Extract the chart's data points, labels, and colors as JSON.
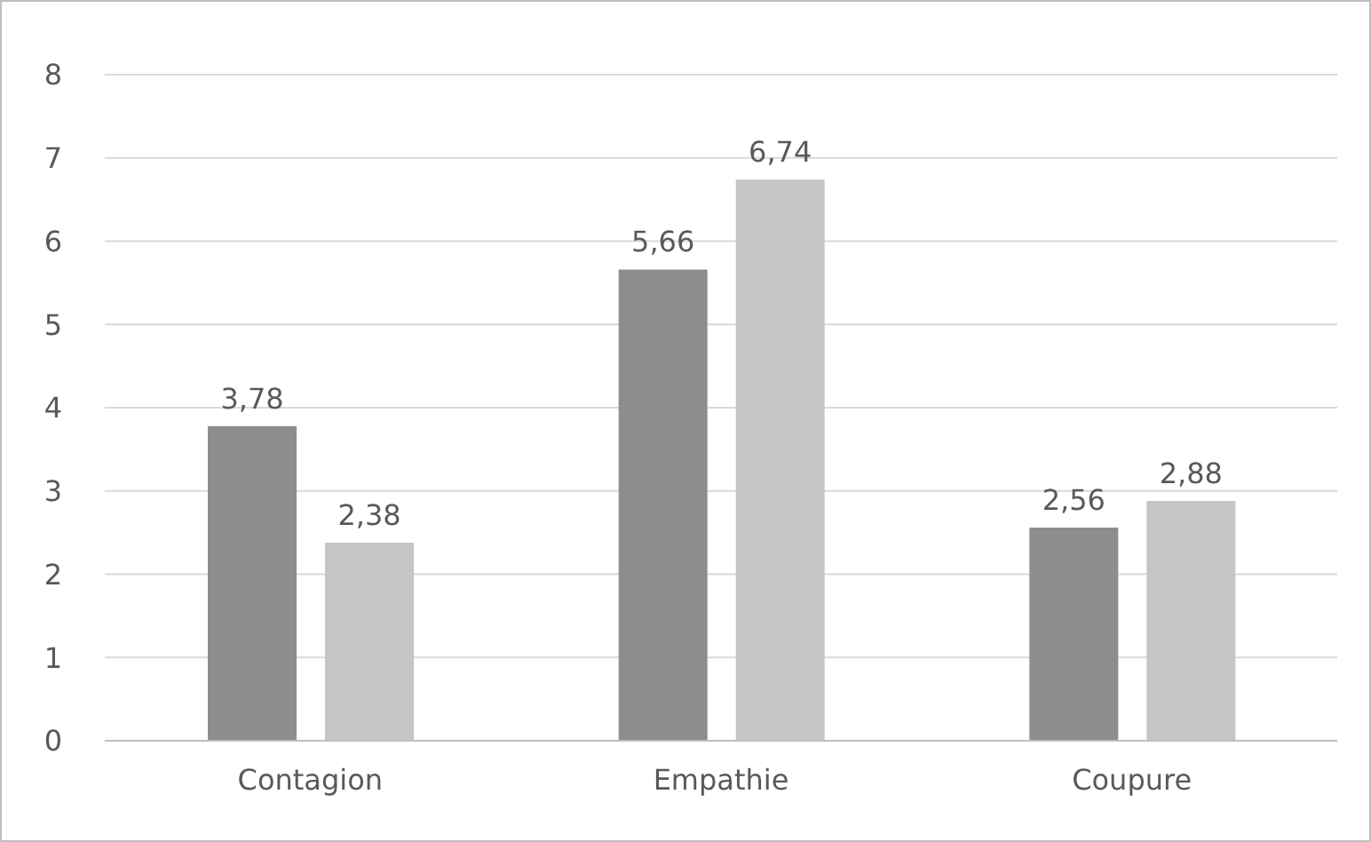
{
  "chart_data": {
    "type": "bar",
    "categories": [
      "Contagion",
      "Empathie",
      "Coupure"
    ],
    "series": [
      {
        "color": "#8d8d90",
        "values": [
          3.78,
          5.66,
          2.56
        ],
        "value_labels": [
          "3,78",
          "5,66",
          "2,56"
        ]
      },
      {
        "color": "#c6c6c8",
        "values": [
          2.38,
          6.74,
          2.88
        ],
        "value_labels": [
          "2,38",
          "6,74",
          "2,88"
        ]
      }
    ],
    "ylim": [
      0,
      8
    ],
    "yticks": [
      0,
      1,
      2,
      3,
      4,
      5,
      6,
      7,
      8
    ],
    "grid": "y",
    "legend": false
  }
}
